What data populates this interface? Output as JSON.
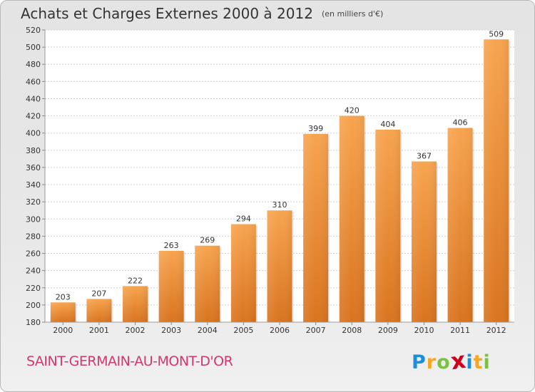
{
  "header": {
    "title": "Achats et Charges Externes 2000 à 2012",
    "unit": "(en milliers d'€)"
  },
  "footer": {
    "commune": "SAINT-GERMAIN-AU-MONT-D'OR",
    "logo": {
      "chars": [
        "P",
        "r",
        "o",
        "x",
        "i",
        "t",
        "i"
      ],
      "colors": [
        "#1e8fd6",
        "#f5a623",
        "#7bc143",
        "#d0021b",
        "#1e8fd6",
        "#f5a623",
        "#7bc143"
      ]
    }
  },
  "colors": {
    "bar_top": "#f7a44f",
    "bar_bottom": "#d9741f",
    "title": "#333333",
    "commune": "#d2386c"
  },
  "chart_data": {
    "type": "bar",
    "title": "Achats et Charges Externes 2000 à 2012",
    "subtitle": "(en milliers d'€)",
    "xlabel": "",
    "ylabel": "",
    "categories": [
      "2000",
      "2001",
      "2002",
      "2003",
      "2004",
      "2005",
      "2006",
      "2007",
      "2008",
      "2009",
      "2010",
      "2011",
      "2012"
    ],
    "values": [
      203,
      207,
      222,
      263,
      269,
      294,
      310,
      399,
      420,
      404,
      367,
      406,
      509
    ],
    "ylim": [
      180,
      520
    ],
    "yticks": [
      180,
      200,
      220,
      240,
      260,
      280,
      300,
      320,
      340,
      360,
      380,
      400,
      420,
      440,
      460,
      480,
      500,
      520
    ],
    "grid": true,
    "legend": "none"
  }
}
